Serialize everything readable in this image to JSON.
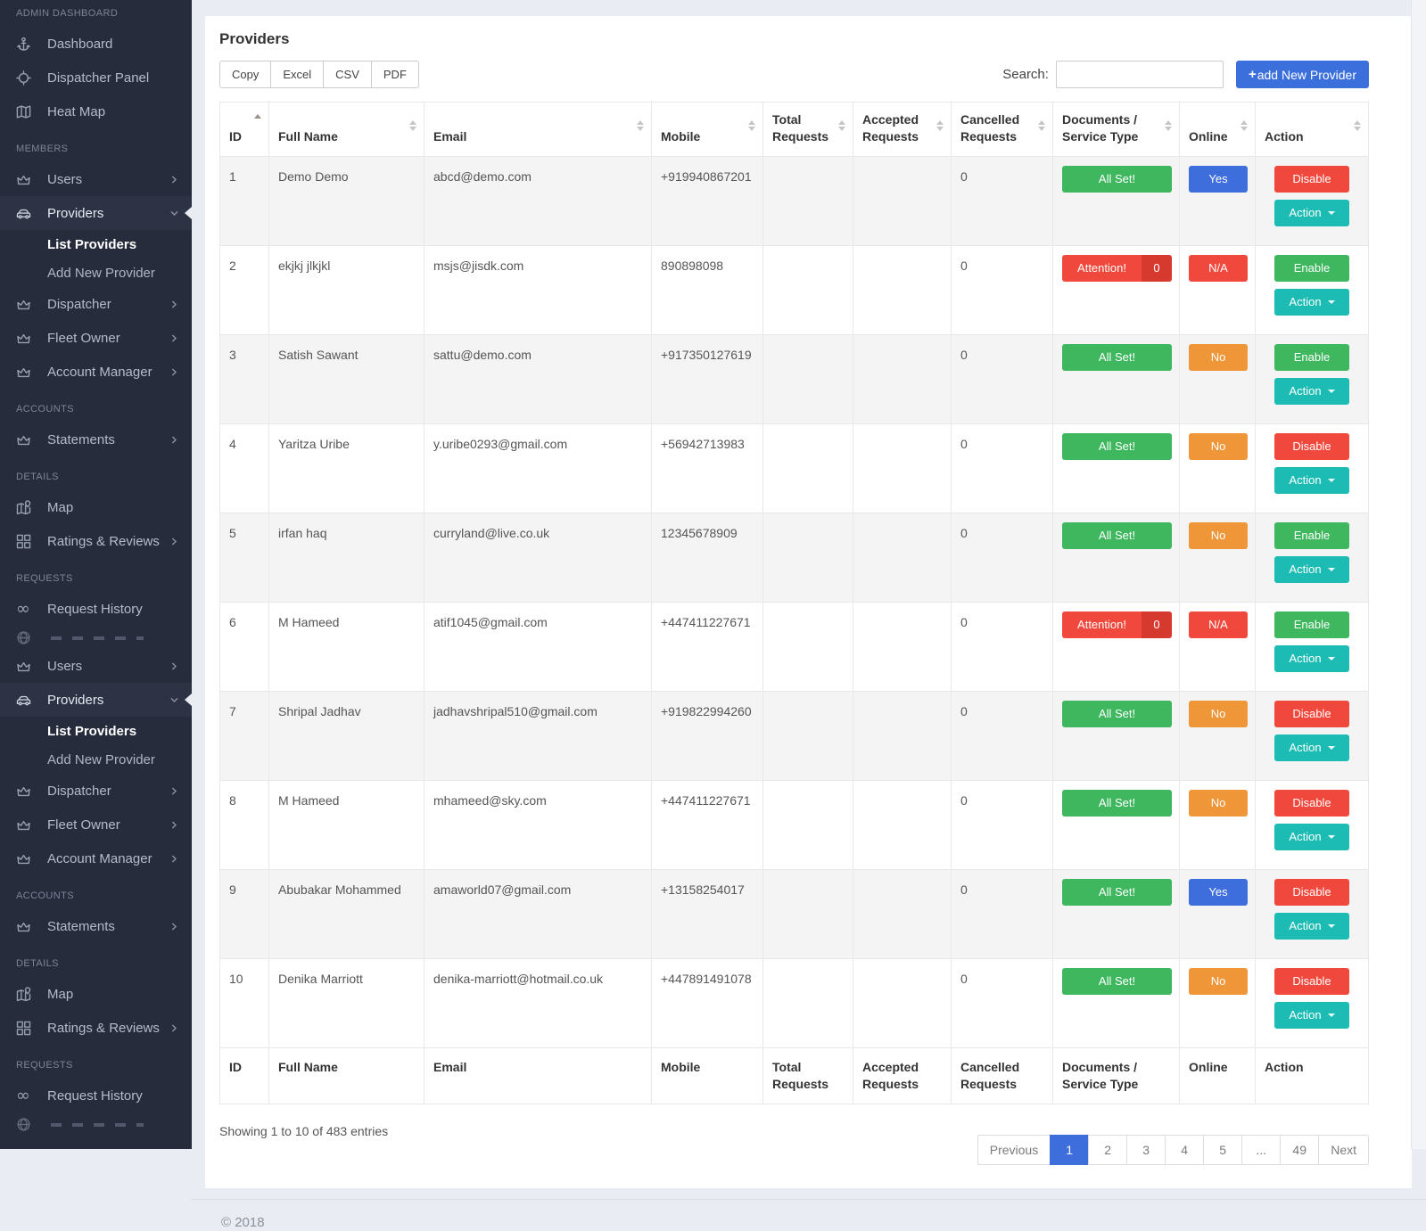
{
  "palette": {
    "sidebar_bg": "#262c3b",
    "page_bg": "#e9ecf2",
    "accent_blue": "#3a6fdc",
    "status_green": "#3eb75f",
    "status_red": "#f0483c",
    "status_red_dark": "#d63a2f",
    "status_orange": "#ef9638",
    "status_teal": "#1cbcb4"
  },
  "sidebar": {
    "items": [
      {
        "type": "header",
        "label": "ADMIN DASHBOARD"
      },
      {
        "type": "item",
        "icon": "anchor-icon",
        "label": "Dashboard"
      },
      {
        "type": "item",
        "icon": "target-icon",
        "label": "Dispatcher Panel"
      },
      {
        "type": "item",
        "icon": "map-icon",
        "label": "Heat Map"
      },
      {
        "type": "header",
        "label": "MEMBERS"
      },
      {
        "type": "item",
        "icon": "crown-icon",
        "label": "Users",
        "chevron": "right"
      },
      {
        "type": "item",
        "icon": "car-icon",
        "label": "Providers",
        "chevron": "down",
        "active": true
      },
      {
        "type": "subitem",
        "label": "List Providers",
        "active": true
      },
      {
        "type": "subitem",
        "label": "Add New Provider"
      },
      {
        "type": "item",
        "icon": "crown-icon",
        "label": "Dispatcher",
        "chevron": "right"
      },
      {
        "type": "item",
        "icon": "crown-icon",
        "label": "Fleet Owner",
        "chevron": "right"
      },
      {
        "type": "item",
        "icon": "crown-icon",
        "label": "Account Manager",
        "chevron": "right"
      },
      {
        "type": "header",
        "label": "ACCOUNTS"
      },
      {
        "type": "item",
        "icon": "crown-icon",
        "label": "Statements",
        "chevron": "right"
      },
      {
        "type": "header",
        "label": "DETAILS"
      },
      {
        "type": "item",
        "icon": "map-pin-icon",
        "label": "Map"
      },
      {
        "type": "item",
        "icon": "grid-icon",
        "label": "Ratings & Reviews",
        "chevron": "right"
      },
      {
        "type": "header",
        "label": "REQUESTS"
      },
      {
        "type": "item",
        "icon": "infinity-icon",
        "label": "Request History"
      },
      {
        "type": "clipped",
        "icon": "globe-icon",
        "label": ""
      },
      {
        "type": "item",
        "icon": "crown-icon",
        "label": "Users",
        "chevron": "right"
      },
      {
        "type": "item",
        "icon": "car-icon",
        "label": "Providers",
        "chevron": "down",
        "active": true
      },
      {
        "type": "subitem",
        "label": "List Providers",
        "active": true
      },
      {
        "type": "subitem",
        "label": "Add New Provider"
      },
      {
        "type": "item",
        "icon": "crown-icon",
        "label": "Dispatcher",
        "chevron": "right"
      },
      {
        "type": "item",
        "icon": "crown-icon",
        "label": "Fleet Owner",
        "chevron": "right"
      },
      {
        "type": "item",
        "icon": "crown-icon",
        "label": "Account Manager",
        "chevron": "right"
      },
      {
        "type": "header",
        "label": "ACCOUNTS"
      },
      {
        "type": "item",
        "icon": "crown-icon",
        "label": "Statements",
        "chevron": "right"
      },
      {
        "type": "header",
        "label": "DETAILS"
      },
      {
        "type": "item",
        "icon": "map-pin-icon",
        "label": "Map"
      },
      {
        "type": "item",
        "icon": "grid-icon",
        "label": "Ratings & Reviews",
        "chevron": "right"
      },
      {
        "type": "header",
        "label": "REQUESTS"
      },
      {
        "type": "item",
        "icon": "infinity-icon",
        "label": "Request History"
      },
      {
        "type": "clipped",
        "icon": "globe-icon",
        "label": ""
      }
    ]
  },
  "main": {
    "title": "Providers",
    "export_buttons": [
      "Copy",
      "Excel",
      "CSV",
      "PDF"
    ],
    "search_label": "Search:",
    "search_value": "",
    "add_button_plus": "+",
    "add_button_label": "add New Provider",
    "table": {
      "headers": [
        "ID",
        "Full Name",
        "Email",
        "Mobile",
        "Total Requests",
        "Accepted Requests",
        "Cancelled Requests",
        "Documents / Service Type",
        "Online",
        "Action"
      ],
      "sorted_column": "ID",
      "sort_direction": "asc",
      "rows": [
        {
          "id": "1",
          "full_name": "Demo Demo",
          "email": "abcd@demo.com",
          "mobile": "+919940867201",
          "total_requests": "",
          "accepted_requests": "",
          "cancelled_requests": "0",
          "documents": {
            "label": "All Set!",
            "variant": "green"
          },
          "online": {
            "label": "Yes",
            "variant": "blue"
          },
          "actions": [
            {
              "label": "Disable",
              "variant": "red"
            },
            {
              "label": "Action",
              "variant": "teal",
              "caret": true
            }
          ]
        },
        {
          "id": "2",
          "full_name": "ekjkj jlkjkl",
          "email": "msjs@jisdk.com",
          "mobile": "890898098",
          "total_requests": "",
          "accepted_requests": "",
          "cancelled_requests": "0",
          "documents": {
            "label": "Attention!",
            "count": "0",
            "variant": "red"
          },
          "online": {
            "label": "N/A",
            "variant": "red"
          },
          "actions": [
            {
              "label": "Enable",
              "variant": "green"
            },
            {
              "label": "Action",
              "variant": "teal",
              "caret": true
            }
          ]
        },
        {
          "id": "3",
          "full_name": "Satish Sawant",
          "email": "sattu@demo.com",
          "mobile": "+917350127619",
          "total_requests": "",
          "accepted_requests": "",
          "cancelled_requests": "0",
          "documents": {
            "label": "All Set!",
            "variant": "green"
          },
          "online": {
            "label": "No",
            "variant": "orange"
          },
          "actions": [
            {
              "label": "Enable",
              "variant": "green"
            },
            {
              "label": "Action",
              "variant": "teal",
              "caret": true
            }
          ]
        },
        {
          "id": "4",
          "full_name": "Yaritza Uribe",
          "email": "y.uribe0293@gmail.com",
          "mobile": "+56942713983",
          "total_requests": "",
          "accepted_requests": "",
          "cancelled_requests": "0",
          "documents": {
            "label": "All Set!",
            "variant": "green"
          },
          "online": {
            "label": "No",
            "variant": "orange"
          },
          "actions": [
            {
              "label": "Disable",
              "variant": "red"
            },
            {
              "label": "Action",
              "variant": "teal",
              "caret": true
            }
          ]
        },
        {
          "id": "5",
          "full_name": "irfan haq",
          "email": "curryland@live.co.uk",
          "mobile": "12345678909",
          "total_requests": "",
          "accepted_requests": "",
          "cancelled_requests": "0",
          "documents": {
            "label": "All Set!",
            "variant": "green"
          },
          "online": {
            "label": "No",
            "variant": "orange"
          },
          "actions": [
            {
              "label": "Enable",
              "variant": "green"
            },
            {
              "label": "Action",
              "variant": "teal",
              "caret": true
            }
          ]
        },
        {
          "id": "6",
          "full_name": "M Hameed",
          "email": "atif1045@gmail.com",
          "mobile": "+447411227671",
          "total_requests": "",
          "accepted_requests": "",
          "cancelled_requests": "0",
          "documents": {
            "label": "Attention!",
            "count": "0",
            "variant": "red"
          },
          "online": {
            "label": "N/A",
            "variant": "red"
          },
          "actions": [
            {
              "label": "Enable",
              "variant": "green"
            },
            {
              "label": "Action",
              "variant": "teal",
              "caret": true
            }
          ]
        },
        {
          "id": "7",
          "full_name": "Shripal Jadhav",
          "email": "jadhavshripal510@gmail.com",
          "mobile": "+919822994260",
          "total_requests": "",
          "accepted_requests": "",
          "cancelled_requests": "0",
          "documents": {
            "label": "All Set!",
            "variant": "green"
          },
          "online": {
            "label": "No",
            "variant": "orange"
          },
          "actions": [
            {
              "label": "Disable",
              "variant": "red"
            },
            {
              "label": "Action",
              "variant": "teal",
              "caret": true
            }
          ]
        },
        {
          "id": "8",
          "full_name": "M Hameed",
          "email": "mhameed@sky.com",
          "mobile": "+447411227671",
          "total_requests": "",
          "accepted_requests": "",
          "cancelled_requests": "0",
          "documents": {
            "label": "All Set!",
            "variant": "green"
          },
          "online": {
            "label": "No",
            "variant": "orange"
          },
          "actions": [
            {
              "label": "Disable",
              "variant": "red"
            },
            {
              "label": "Action",
              "variant": "teal",
              "caret": true
            }
          ]
        },
        {
          "id": "9",
          "full_name": "Abubakar Mohammed",
          "email": "amaworld07@gmail.com",
          "mobile": "+13158254017",
          "total_requests": "",
          "accepted_requests": "",
          "cancelled_requests": "0",
          "documents": {
            "label": "All Set!",
            "variant": "green"
          },
          "online": {
            "label": "Yes",
            "variant": "blue"
          },
          "actions": [
            {
              "label": "Disable",
              "variant": "red"
            },
            {
              "label": "Action",
              "variant": "teal",
              "caret": true
            }
          ]
        },
        {
          "id": "10",
          "full_name": "Denika Marriott",
          "email": "denika-marriott@hotmail.co.uk",
          "mobile": "+447891491078",
          "total_requests": "",
          "accepted_requests": "",
          "cancelled_requests": "0",
          "documents": {
            "label": "All Set!",
            "variant": "green"
          },
          "online": {
            "label": "No",
            "variant": "orange"
          },
          "actions": [
            {
              "label": "Disable",
              "variant": "red"
            },
            {
              "label": "Action",
              "variant": "teal",
              "caret": true
            }
          ]
        }
      ]
    },
    "showing_text": "Showing 1 to 10 of 483 entries",
    "pagination": {
      "previous": "Previous",
      "pages": [
        "1",
        "2",
        "3",
        "4",
        "5",
        "...",
        "49"
      ],
      "active_page": "1",
      "next": "Next"
    }
  },
  "footer": {
    "copyright": "© 2018"
  }
}
